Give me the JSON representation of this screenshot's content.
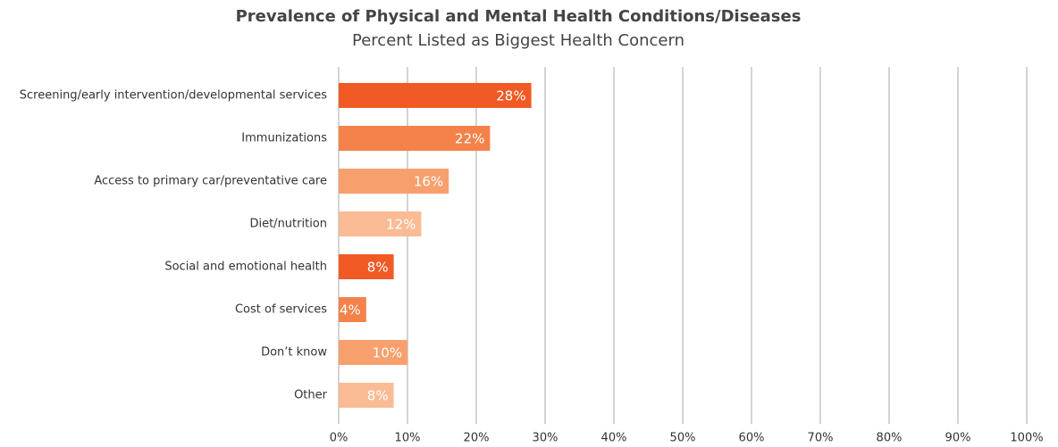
{
  "chart_data": {
    "type": "bar",
    "orientation": "horizontal",
    "title": "Prevalence of Physical and Mental Health Conditions/Diseases",
    "subtitle": "Percent Listed as Biggest Health Concern",
    "categories": [
      "Screening/early intervention/developmental services",
      "Immunizations",
      "Access to primary car/preventative care",
      "Diet/nutrition",
      "Social and emotional health",
      "Cost of services",
      "Don’t know",
      "Other"
    ],
    "values": [
      28,
      22,
      16,
      12,
      8,
      4,
      10,
      8
    ],
    "value_labels": [
      "28%",
      "22%",
      "16%",
      "12%",
      "8%",
      "4%",
      "10%",
      "8%"
    ],
    "colors": [
      "#f15a24",
      "#f5824a",
      "#f7a06e",
      "#fabb95",
      "#f15a24",
      "#f5824a",
      "#f7a06e",
      "#fabb95"
    ],
    "xlim": [
      0,
      100
    ],
    "xticks": [
      {
        "value": 0,
        "label": "0%"
      },
      {
        "value": 10,
        "label": "10%"
      },
      {
        "value": 20,
        "label": "20%"
      },
      {
        "value": 30,
        "label": "30%"
      },
      {
        "value": 40,
        "label": "40%"
      },
      {
        "value": 50,
        "label": "50%"
      },
      {
        "value": 60,
        "label": "60%"
      },
      {
        "value": 70,
        "label": "70%"
      },
      {
        "value": 80,
        "label": "80%"
      },
      {
        "value": 90,
        "label": "90%"
      },
      {
        "value": 100,
        "label": "100%"
      }
    ],
    "grid": true
  }
}
